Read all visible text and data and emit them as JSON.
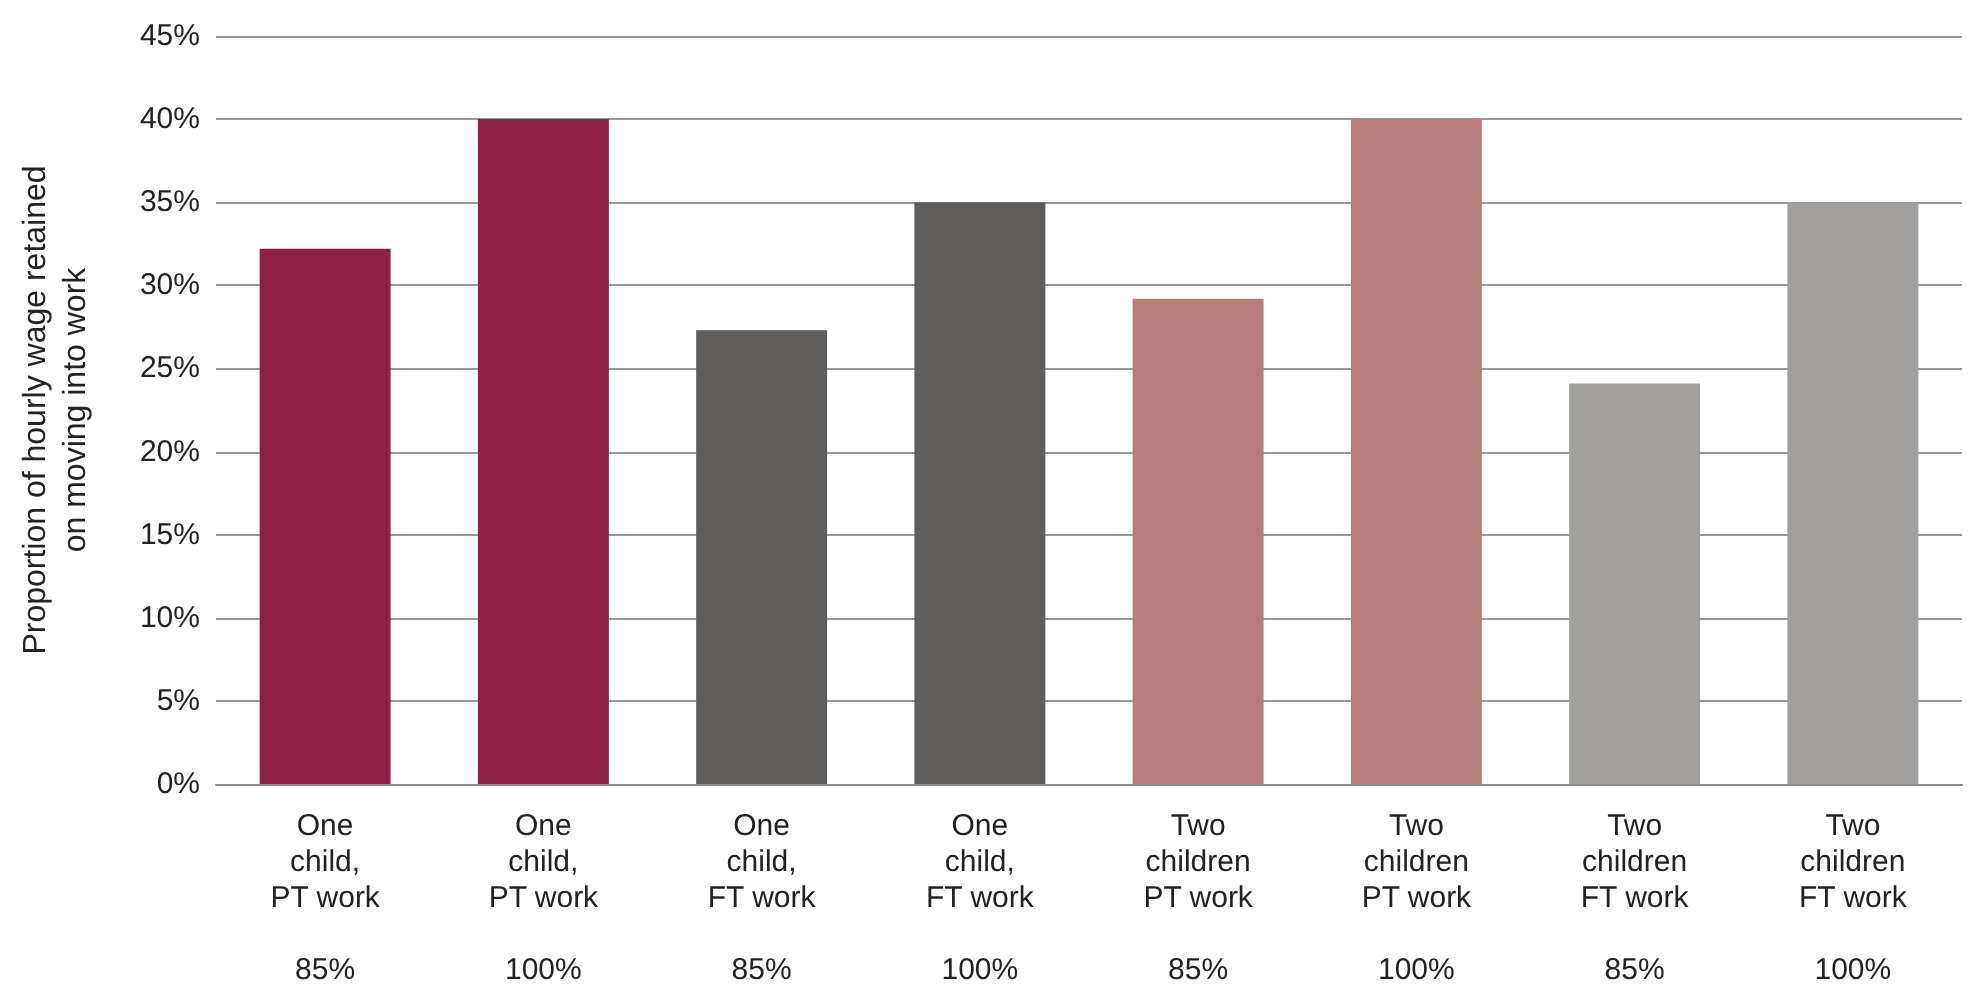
{
  "chart_data": {
    "type": "bar",
    "ylabel": "Proportion of hourly wage retained\non moving into work",
    "categories": [
      "One\nchild,\nPT work\n\n85%",
      "One\nchild,\nPT work\n\n100%",
      "One\nchild,\nFT work\n\n85%",
      "One\nchild,\nFT work\n\n100%",
      "Two\nchildren\nPT work\n\n85%",
      "Two\nchildren\nPT work\n\n100%",
      "Two\nchildren\nFT work\n\n85%",
      "Two\nchildren\nFT work\n\n100%"
    ],
    "values": [
      32.2,
      40,
      27.3,
      35,
      29.2,
      40,
      24.1,
      35
    ],
    "colors": [
      "#8c2045",
      "#8c2045",
      "#5e5d5b",
      "#5e5d5b",
      "#b77c7b",
      "#b77c7b",
      "#a09f9d",
      "#a09f9d"
    ],
    "ylim": [
      0,
      45
    ],
    "yticks": [
      {
        "value": 0,
        "label": "0%"
      },
      {
        "value": 5,
        "label": "5%"
      },
      {
        "value": 10,
        "label": "10%"
      },
      {
        "value": 15,
        "label": "15%"
      },
      {
        "value": 20,
        "label": "20%"
      },
      {
        "value": 25,
        "label": "25%"
      },
      {
        "value": 30,
        "label": "30%"
      },
      {
        "value": 35,
        "label": "35%"
      },
      {
        "value": 40,
        "label": "40%"
      },
      {
        "value": 45,
        "label": "45%"
      }
    ],
    "grid": "y"
  }
}
